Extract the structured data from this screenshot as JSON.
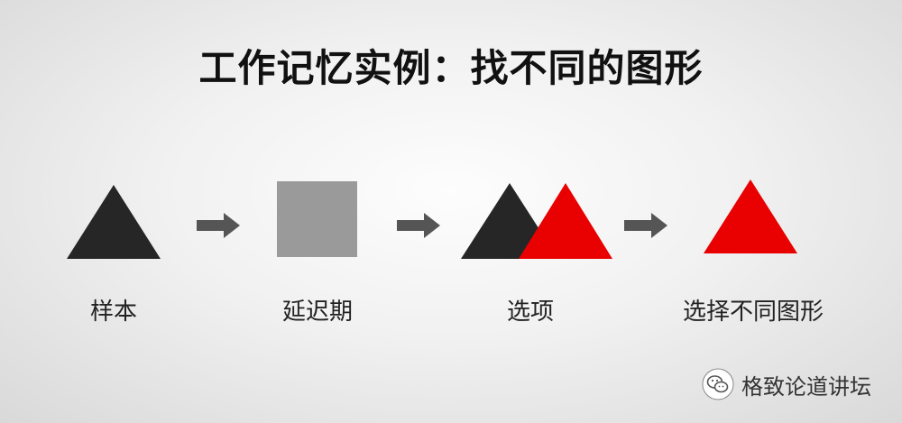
{
  "title": "工作记忆实例：找不同的图形",
  "steps": [
    {
      "label": "样本"
    },
    {
      "label": "延迟期"
    },
    {
      "label": "选项"
    },
    {
      "label": "选择不同图形"
    }
  ],
  "colors": {
    "dark": "#262626",
    "gray": "#9a9a9a",
    "red": "#e90000",
    "arrow": "#555555"
  },
  "watermark": {
    "icon": "wechat-icon",
    "text": "格致论道讲坛"
  }
}
